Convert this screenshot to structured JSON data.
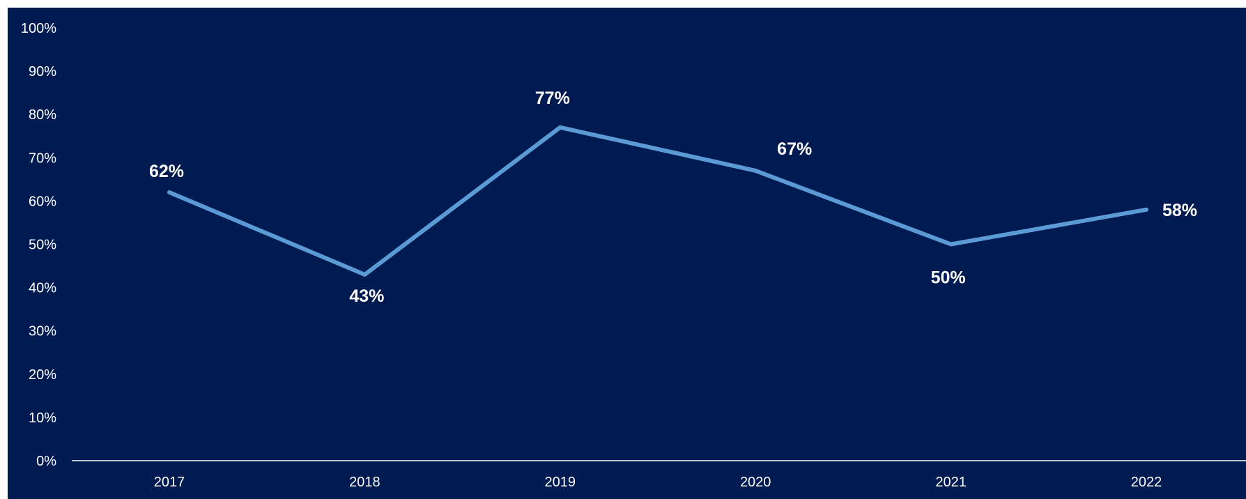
{
  "chart_data": {
    "type": "line",
    "categories": [
      "2017",
      "2018",
      "2019",
      "2020",
      "2021",
      "2022"
    ],
    "series": [
      {
        "values": [
          62,
          43,
          77,
          67,
          50,
          58
        ],
        "color": "#5b9bd5"
      }
    ],
    "data_labels": [
      "62%",
      "43%",
      "77%",
      "67%",
      "50%",
      "58%"
    ],
    "ylim": [
      0,
      100
    ],
    "yticks": [
      "0%",
      "10%",
      "20%",
      "30%",
      "40%",
      "50%",
      "60%",
      "70%",
      "80%",
      "90%",
      "100%"
    ],
    "grid": false,
    "background": "#001a52",
    "axis_color": "#ffffff",
    "text_color": "#ffffff"
  }
}
